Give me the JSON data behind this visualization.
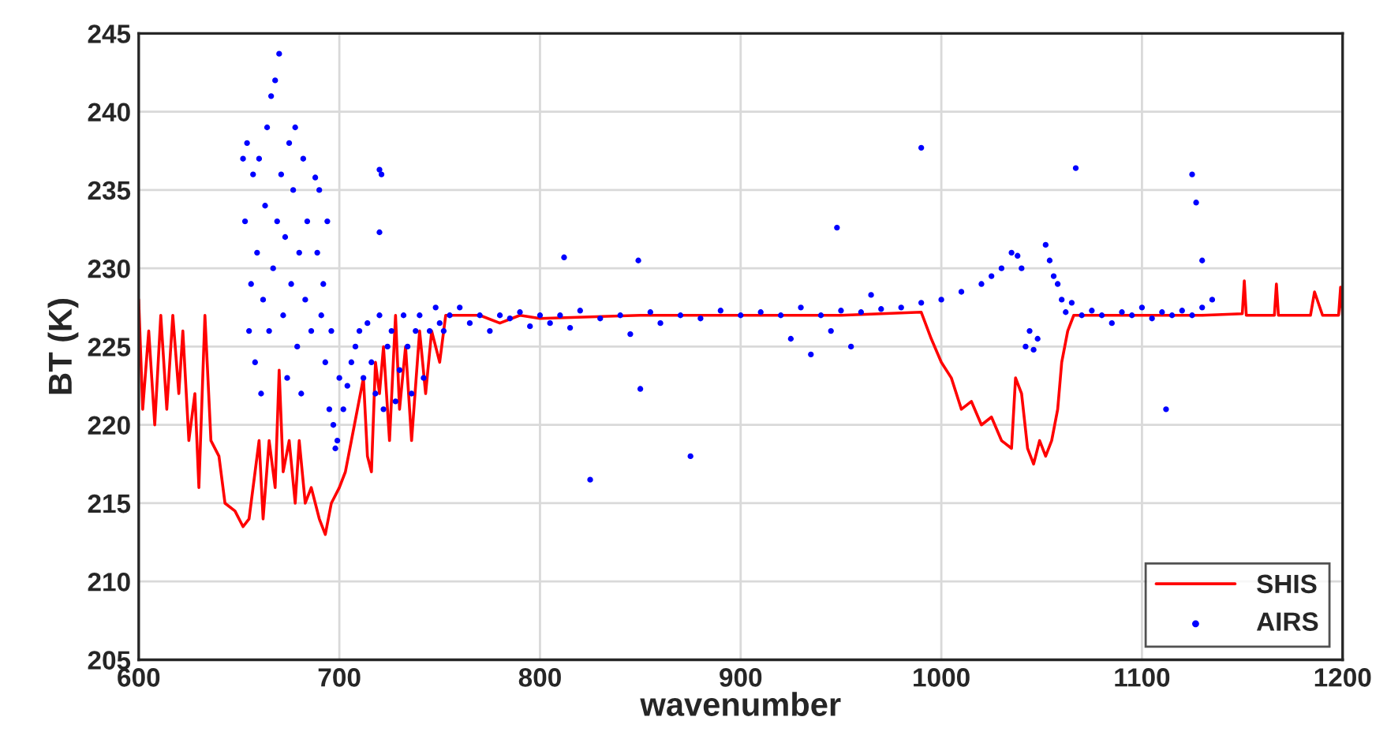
{
  "chart_data": {
    "type": "line",
    "xlabel": "wavenumber",
    "ylabel": "BT (K)",
    "xlim": [
      600,
      1200
    ],
    "xticks": [
      600,
      700,
      800,
      900,
      1000,
      1100,
      1200
    ],
    "ylim": [
      205,
      245
    ],
    "yticks": [
      205,
      210,
      215,
      220,
      225,
      230,
      235,
      240,
      245
    ],
    "grid": true,
    "legend": "bottom right",
    "series": [
      {
        "name": "SHIS",
        "color": "#ff0000",
        "marker": "none",
        "line_style": "solid",
        "x": [
          600,
          602,
          605,
          608,
          611,
          614,
          617,
          620,
          622,
          625,
          628,
          630,
          633,
          636,
          640,
          643,
          648,
          652,
          655,
          658,
          660,
          662,
          665,
          668,
          670,
          672,
          675,
          678,
          680,
          683,
          686,
          690,
          693,
          696,
          700,
          703,
          706,
          709,
          712,
          714,
          716,
          718,
          720,
          722,
          725,
          728,
          730,
          733,
          736,
          740,
          743,
          746,
          750,
          753,
          758,
          770,
          780,
          790,
          800,
          850,
          900,
          950,
          990,
          995,
          1000,
          1005,
          1010,
          1015,
          1020,
          1025,
          1030,
          1035,
          1037,
          1040,
          1043,
          1046,
          1049,
          1052,
          1055,
          1058,
          1060,
          1063,
          1066,
          1100,
          1130,
          1150,
          1151,
          1152,
          1166,
          1167,
          1168,
          1184,
          1186,
          1190,
          1198,
          1199,
          1200
        ],
        "values": [
          228,
          221,
          226,
          220,
          227,
          221,
          227,
          222,
          226,
          219,
          222,
          216,
          227,
          219,
          218,
          215,
          214.5,
          213.5,
          214,
          217,
          219,
          214,
          219,
          216,
          223.5,
          217,
          219,
          215,
          219,
          215,
          216,
          214,
          213,
          215,
          216,
          217,
          219,
          221,
          223,
          218,
          217,
          224,
          222,
          225,
          219,
          227,
          221,
          225,
          219,
          226,
          222,
          226,
          224,
          227,
          227,
          227,
          226.5,
          227,
          226.8,
          227,
          227,
          227,
          227.2,
          225.5,
          224,
          223,
          221,
          221.5,
          220,
          220.5,
          219,
          218.5,
          223,
          222,
          218.5,
          217.5,
          219,
          218,
          219,
          221,
          224,
          226,
          227,
          227,
          227,
          227.1,
          229.2,
          227,
          227,
          229,
          227,
          227,
          228.5,
          227,
          227,
          228.8,
          227
        ]
      },
      {
        "name": "AIRS",
        "type": "scatter",
        "color": "#0000ff",
        "marker": "circle",
        "x": [
          652,
          653,
          654,
          655,
          656,
          657,
          658,
          659,
          660,
          661,
          662,
          663,
          664,
          665,
          666,
          667,
          668,
          669,
          670,
          671,
          672,
          673,
          674,
          675,
          676,
          677,
          678,
          679,
          680,
          681,
          682,
          683,
          684,
          686,
          688,
          689,
          690,
          691,
          692,
          693,
          694,
          695,
          696,
          697,
          698,
          699,
          700,
          702,
          704,
          706,
          708,
          710,
          712,
          714,
          716,
          718,
          720,
          722,
          724,
          726,
          728,
          730,
          732,
          734,
          736,
          738,
          740,
          742,
          745,
          748,
          750,
          752,
          755,
          760,
          765,
          770,
          775,
          780,
          785,
          790,
          795,
          800,
          805,
          810,
          815,
          820,
          830,
          840,
          845,
          855,
          860,
          870,
          880,
          890,
          900,
          910,
          920,
          925,
          930,
          935,
          940,
          945,
          950,
          955,
          960,
          965,
          970,
          980,
          990,
          1000,
          1010,
          1020,
          1025,
          1030,
          1035,
          1038,
          1040,
          1042,
          1044,
          1046,
          1048,
          1052,
          1054,
          1056,
          1058,
          1060,
          1062,
          1065,
          1070,
          1075,
          1080,
          1085,
          1090,
          1095,
          1100,
          1105,
          1110,
          1115,
          1120,
          1125,
          1130,
          1135,
          720,
          721,
          720,
          825,
          875,
          850,
          990,
          1067,
          1125,
          1127,
          1130,
          1112,
          948,
          812,
          849
        ],
        "values": [
          237,
          233,
          238,
          226,
          229,
          236,
          224,
          231,
          237,
          222,
          228,
          234,
          239,
          226,
          241,
          230,
          242,
          233,
          243.7,
          236,
          227,
          232,
          223,
          238,
          229,
          235,
          239,
          225,
          231,
          222,
          237,
          228,
          233,
          226,
          235.8,
          231,
          235,
          227,
          229,
          224,
          233,
          221,
          226,
          220,
          218.5,
          219,
          223,
          221,
          222.5,
          224,
          225,
          226,
          223,
          226.5,
          224,
          222,
          227,
          221,
          225,
          226,
          221.5,
          223.5,
          227,
          225,
          222,
          226,
          227,
          223,
          226,
          227.5,
          226.5,
          226,
          227,
          227.5,
          226.5,
          227,
          226,
          227,
          226.8,
          227.2,
          226.3,
          227,
          226.5,
          227,
          226.2,
          227.3,
          226.8,
          227,
          225.8,
          227.2,
          226.5,
          227,
          226.8,
          227.3,
          227,
          227.2,
          227,
          225.5,
          227.5,
          224.5,
          227,
          226,
          227.3,
          225,
          227.2,
          228.3,
          227.4,
          227.5,
          227.8,
          228,
          228.5,
          229,
          229.5,
          230,
          231,
          230.8,
          230,
          225,
          226,
          224.8,
          225.5,
          231.5,
          230.5,
          229.5,
          229,
          228,
          227.2,
          227.8,
          227,
          227.3,
          227,
          226.5,
          227.2,
          227,
          227.5,
          226.8,
          227.2,
          227,
          227.3,
          227,
          227.5,
          228,
          236.3,
          236,
          232.3,
          216.5,
          218,
          222.3,
          237.7,
          236.4,
          236,
          234.2,
          230.5,
          221,
          232.6,
          230.7,
          230.5
        ]
      }
    ]
  }
}
